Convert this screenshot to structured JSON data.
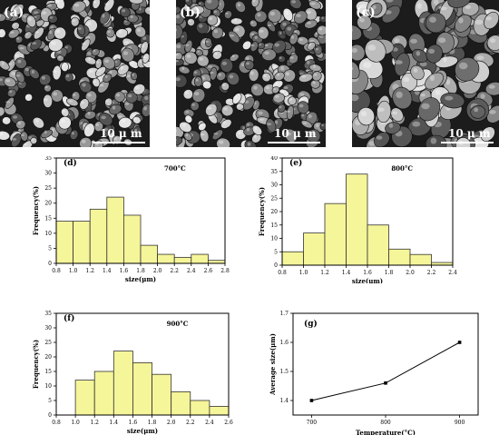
{
  "sem_images": [
    {
      "label": "(a)",
      "scale": "10 μ m"
    },
    {
      "label": "(b)",
      "scale": "10 μ m"
    },
    {
      "label": "(c)",
      "scale": "10 μ m"
    }
  ],
  "chart_data": [
    {
      "type": "bar",
      "panel": "(d)",
      "annotation": "700°C",
      "xlabel": "size(μm)",
      "ylabel": "Frequency(%)",
      "xlim": [
        0.8,
        2.8
      ],
      "ylim": [
        0,
        35
      ],
      "xticks": [
        0.8,
        1.0,
        1.2,
        1.4,
        1.6,
        1.8,
        2.0,
        2.2,
        2.4,
        2.6,
        2.8
      ],
      "yticks": [
        0,
        5,
        10,
        15,
        20,
        25,
        30,
        35
      ],
      "bin_width": 0.2,
      "bin_starts": [
        0.8,
        1.0,
        1.2,
        1.4,
        1.6,
        1.8,
        2.0,
        2.2,
        2.4,
        2.6
      ],
      "values": [
        14,
        14,
        18,
        22,
        16,
        6,
        3,
        2,
        3,
        1
      ]
    },
    {
      "type": "bar",
      "panel": "(e)",
      "annotation": "800°C",
      "xlabel": "size(μm)",
      "ylabel": "Frequency(%)",
      "xlim": [
        0.8,
        2.4
      ],
      "ylim": [
        0,
        40
      ],
      "xticks": [
        0.8,
        1.0,
        1.2,
        1.4,
        1.6,
        1.8,
        2.0,
        2.2,
        2.4
      ],
      "yticks": [
        0,
        5,
        10,
        15,
        20,
        25,
        30,
        35,
        40
      ],
      "bin_width": 0.2,
      "bin_starts": [
        0.8,
        1.0,
        1.2,
        1.4,
        1.6,
        1.8,
        2.0,
        2.2
      ],
      "values": [
        5,
        12,
        23,
        34,
        15,
        6,
        4,
        1
      ]
    },
    {
      "type": "bar",
      "panel": "(f)",
      "annotation": "900°C",
      "xlabel": "size(μm)",
      "ylabel": "Frequency(%)",
      "xlim": [
        0.8,
        2.6
      ],
      "ylim": [
        0,
        35
      ],
      "xticks": [
        0.8,
        1.0,
        1.2,
        1.4,
        1.6,
        1.8,
        2.0,
        2.2,
        2.4,
        2.6
      ],
      "yticks": [
        0,
        5,
        10,
        15,
        20,
        25,
        30,
        35
      ],
      "bin_width": 0.2,
      "bin_starts": [
        1.0,
        1.2,
        1.4,
        1.6,
        1.8,
        2.0,
        2.2,
        2.4
      ],
      "values": [
        12,
        15,
        22,
        18,
        14,
        8,
        5,
        3
      ]
    },
    {
      "type": "line",
      "panel": "(g)",
      "xlabel": "Temperature(°C)",
      "ylabel": "Average size(μm)",
      "xlim": [
        675,
        925
      ],
      "ylim": [
        1.35,
        1.7
      ],
      "xticks": [
        700,
        800,
        900
      ],
      "yticks": [
        1.4,
        1.5,
        1.6,
        1.7
      ],
      "x": [
        700,
        800,
        900
      ],
      "y": [
        1.4,
        1.46,
        1.6
      ]
    }
  ],
  "colors": {
    "bar_fill": "#f5f59a",
    "bar_stroke": "#333333",
    "axis": "#000000",
    "line": "#000000"
  }
}
